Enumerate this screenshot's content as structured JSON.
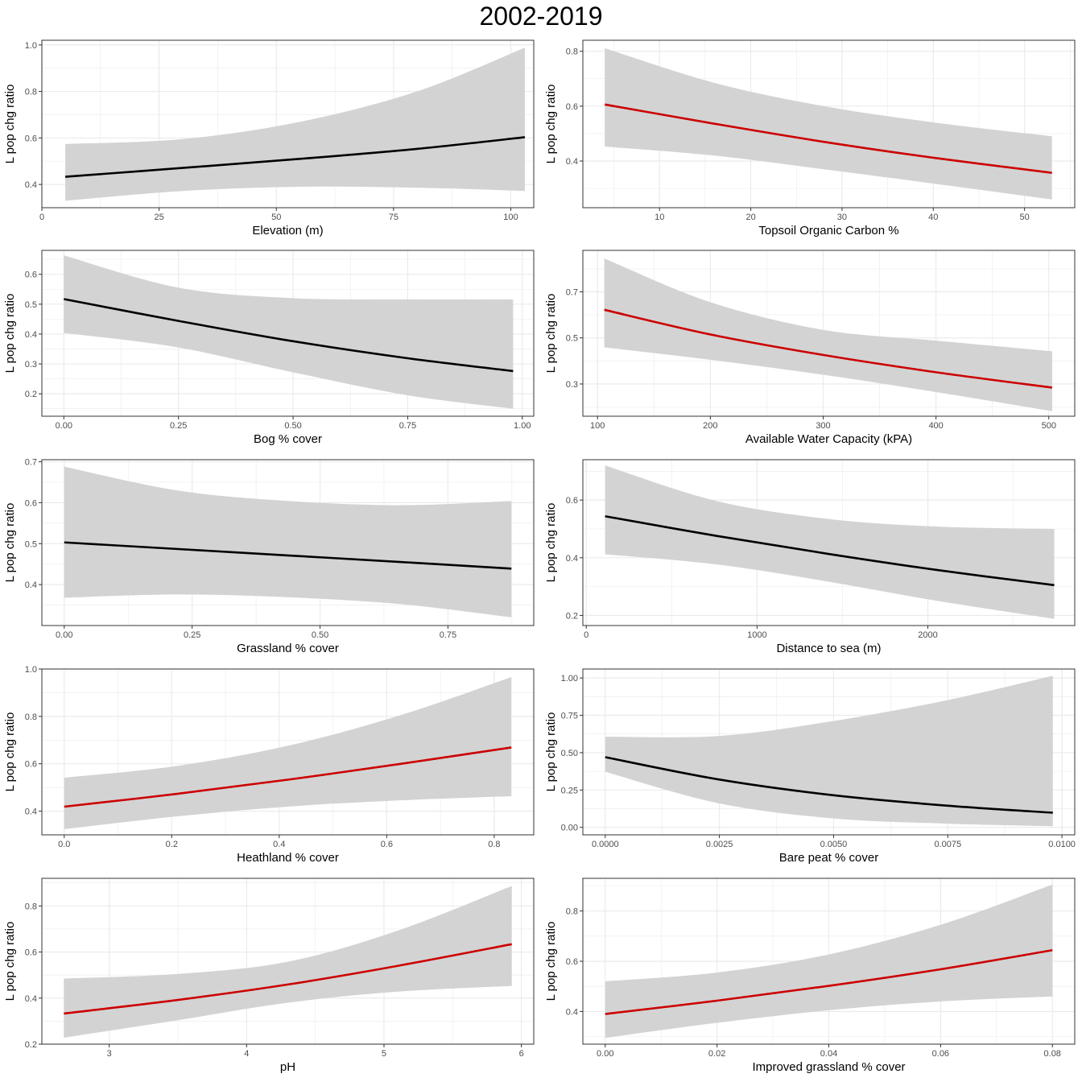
{
  "title": "2002-2019",
  "colors": {
    "significant": "#cc0000",
    "nonsignificant": "#000000",
    "ribbon": "#d3d3d3",
    "grid": "#ebebeb",
    "panel_border": "#333333"
  },
  "chart_data": [
    {
      "type": "line",
      "title": "",
      "xlabel": "Elevation (m)",
      "ylabel": "L pop chg ratio",
      "xlim": [
        0,
        104.9
      ],
      "ylim": [
        0.3,
        1.02
      ],
      "xticks": [
        0,
        25,
        50,
        75,
        100
      ],
      "xtick_labels": [
        "0",
        "25",
        "50",
        "75",
        "100"
      ],
      "yticks": [
        0.4,
        0.6,
        0.8,
        1.0
      ],
      "ytick_labels": [
        "0.4",
        "0.6",
        "0.8",
        "1.0"
      ],
      "line_color": "black",
      "x": [
        5,
        30,
        55,
        80,
        103
      ],
      "y": [
        0.433,
        0.471,
        0.51,
        0.553,
        0.603
      ],
      "lower": [
        0.33,
        0.372,
        0.39,
        0.386,
        0.372
      ],
      "upper": [
        0.574,
        0.595,
        0.669,
        0.8,
        0.988
      ]
    },
    {
      "type": "line",
      "title": "",
      "xlabel": "Topsoil Organic Carbon %",
      "ylabel": "L pop chg ratio",
      "xlim": [
        1.6,
        55.5
      ],
      "ylim": [
        0.23,
        0.84
      ],
      "xticks": [
        10,
        20,
        30,
        40,
        50
      ],
      "xtick_labels": [
        "10",
        "20",
        "30",
        "40",
        "50"
      ],
      "yticks": [
        0.4,
        0.6,
        0.8
      ],
      "ytick_labels": [
        "0.4",
        "0.6",
        "0.8"
      ],
      "line_color": "red",
      "x": [
        4,
        16,
        28,
        40,
        53
      ],
      "y": [
        0.606,
        0.536,
        0.47,
        0.412,
        0.357
      ],
      "lower": [
        0.453,
        0.42,
        0.37,
        0.318,
        0.26
      ],
      "upper": [
        0.811,
        0.685,
        0.6,
        0.541,
        0.49
      ]
    },
    {
      "type": "line",
      "title": "",
      "xlabel": "Bog % cover",
      "ylabel": "L pop chg ratio",
      "xlim": [
        -0.048,
        1.025
      ],
      "ylim": [
        0.125,
        0.68
      ],
      "xticks": [
        0,
        0.25,
        0.5,
        0.75,
        1.0
      ],
      "xtick_labels": [
        "0.00",
        "0.25",
        "0.50",
        "0.75",
        "1.00"
      ],
      "yticks": [
        0.2,
        0.3,
        0.4,
        0.5,
        0.6
      ],
      "ytick_labels": [
        "0.2",
        "0.3",
        "0.4",
        "0.5",
        "0.6"
      ],
      "line_color": "black",
      "x": [
        0,
        0.25,
        0.5,
        0.75,
        0.98
      ],
      "y": [
        0.517,
        0.444,
        0.376,
        0.319,
        0.276
      ],
      "lower": [
        0.404,
        0.355,
        0.272,
        0.195,
        0.15
      ],
      "upper": [
        0.663,
        0.555,
        0.52,
        0.516,
        0.516
      ]
    },
    {
      "type": "line",
      "title": "",
      "xlabel": "Available Water Capacity (kPA)",
      "ylabel": "L pop chg ratio",
      "xlim": [
        87,
        523
      ],
      "ylim": [
        0.16,
        0.88
      ],
      "xticks": [
        100,
        200,
        300,
        400,
        500
      ],
      "xtick_labels": [
        "100",
        "200",
        "300",
        "400",
        "500"
      ],
      "yticks": [
        0.3,
        0.5,
        0.7
      ],
      "ytick_labels": [
        "0.3",
        "0.5",
        "0.7"
      ],
      "line_color": "red",
      "x": [
        106,
        200,
        300,
        400,
        503
      ],
      "y": [
        0.622,
        0.515,
        0.426,
        0.351,
        0.284
      ],
      "lower": [
        0.459,
        0.405,
        0.34,
        0.265,
        0.182
      ],
      "upper": [
        0.845,
        0.655,
        0.535,
        0.488,
        0.442
      ]
    },
    {
      "type": "line",
      "title": "",
      "xlabel": "Grassland % cover",
      "ylabel": "L pop chg ratio",
      "xlim": [
        -0.0437,
        0.9177
      ],
      "ylim": [
        0.3,
        0.705
      ],
      "xticks": [
        0,
        0.25,
        0.5,
        0.75
      ],
      "xtick_labels": [
        "0.00",
        "0.25",
        "0.50",
        "0.75"
      ],
      "yticks": [
        0.4,
        0.5,
        0.6,
        0.7
      ],
      "ytick_labels": [
        "0.4",
        "0.5",
        "0.6",
        "0.7"
      ],
      "line_color": "black",
      "x": [
        0,
        0.22,
        0.44,
        0.66,
        0.874
      ],
      "y": [
        0.503,
        0.487,
        0.471,
        0.455,
        0.439
      ],
      "lower": [
        0.368,
        0.376,
        0.369,
        0.352,
        0.32
      ],
      "upper": [
        0.688,
        0.63,
        0.604,
        0.594,
        0.604
      ]
    },
    {
      "type": "line",
      "title": "",
      "xlabel": "Distance to sea (m)",
      "ylabel": "L pop chg ratio",
      "xlim": [
        -20,
        2860
      ],
      "ylim": [
        0.165,
        0.74
      ],
      "xticks": [
        0,
        1000,
        2000
      ],
      "xtick_labels": [
        "0",
        "1000",
        "2000"
      ],
      "yticks": [
        0.2,
        0.4,
        0.6
      ],
      "ytick_labels": [
        "0.2",
        "0.4",
        "0.6"
      ],
      "line_color": "black",
      "x": [
        110,
        760,
        1410,
        2060,
        2740
      ],
      "y": [
        0.544,
        0.476,
        0.414,
        0.357,
        0.305
      ],
      "lower": [
        0.412,
        0.377,
        0.318,
        0.25,
        0.188
      ],
      "upper": [
        0.72,
        0.597,
        0.535,
        0.508,
        0.5
      ]
    },
    {
      "type": "line",
      "title": "",
      "xlabel": "Heathland % cover",
      "ylabel": "L pop chg ratio",
      "xlim": [
        -0.0416,
        0.8736
      ],
      "ylim": [
        0.3,
        1.0
      ],
      "xticks": [
        0,
        0.2,
        0.4,
        0.6,
        0.8
      ],
      "xtick_labels": [
        "0.0",
        "0.2",
        "0.4",
        "0.6",
        "0.8"
      ],
      "yticks": [
        0.4,
        0.6,
        0.8,
        1.0
      ],
      "ytick_labels": [
        "0.4",
        "0.6",
        "0.8",
        "1.0"
      ],
      "line_color": "red",
      "x": [
        0,
        0.21,
        0.42,
        0.63,
        0.832
      ],
      "y": [
        0.419,
        0.473,
        0.534,
        0.601,
        0.669
      ],
      "lower": [
        0.324,
        0.378,
        0.42,
        0.446,
        0.463
      ],
      "upper": [
        0.541,
        0.591,
        0.678,
        0.808,
        0.966
      ]
    },
    {
      "type": "line",
      "title": "",
      "xlabel": "Bare peat % cover",
      "ylabel": "L pop chg ratio",
      "xlim": [
        -0.0004895,
        0.01028
      ],
      "ylim": [
        -0.05,
        1.06
      ],
      "xticks": [
        0,
        0.0025,
        0.005,
        0.0075,
        0.01
      ],
      "xtick_labels": [
        "0.0000",
        "0.0025",
        "0.0050",
        "0.0075",
        "0.0100"
      ],
      "yticks": [
        0,
        0.25,
        0.5,
        0.75,
        1.0
      ],
      "ytick_labels": [
        "0.00",
        "0.25",
        "0.50",
        "0.75",
        "1.00"
      ],
      "line_color": "black",
      "x": [
        0,
        0.0025,
        0.005,
        0.0075,
        0.0098
      ],
      "y": [
        0.47,
        0.32,
        0.215,
        0.145,
        0.098
      ],
      "lower": [
        0.372,
        0.16,
        0.06,
        0.025,
        0.008
      ],
      "upper": [
        0.607,
        0.612,
        0.712,
        0.852,
        1.015
      ]
    },
    {
      "type": "line",
      "title": "",
      "xlabel": "pH",
      "ylabel": "L pop chg ratio",
      "xlim": [
        2.51,
        6.09
      ],
      "ylim": [
        0.2,
        0.92
      ],
      "xticks": [
        3,
        4,
        5,
        6
      ],
      "xtick_labels": [
        "3",
        "4",
        "5",
        "6"
      ],
      "yticks": [
        0.2,
        0.4,
        0.6,
        0.8
      ],
      "ytick_labels": [
        "0.2",
        "0.4",
        "0.6",
        "0.8"
      ],
      "line_color": "red",
      "x": [
        2.67,
        3.5,
        4.3,
        5.1,
        5.93
      ],
      "y": [
        0.333,
        0.392,
        0.459,
        0.54,
        0.634
      ],
      "lower": [
        0.228,
        0.304,
        0.38,
        0.428,
        0.453
      ],
      "upper": [
        0.485,
        0.505,
        0.558,
        0.693,
        0.887
      ]
    },
    {
      "type": "line",
      "title": "",
      "xlabel": "Improved grassland % cover",
      "ylabel": "L pop chg ratio",
      "xlim": [
        -0.004,
        0.084
      ],
      "ylim": [
        0.27,
        0.93
      ],
      "xticks": [
        0,
        0.02,
        0.04,
        0.06,
        0.08
      ],
      "xtick_labels": [
        "0.00",
        "0.02",
        "0.04",
        "0.06",
        "0.08"
      ],
      "yticks": [
        0.4,
        0.6,
        0.8
      ],
      "ytick_labels": [
        "0.4",
        "0.6",
        "0.8"
      ],
      "line_color": "red",
      "x": [
        0,
        0.02,
        0.04,
        0.06,
        0.08
      ],
      "y": [
        0.39,
        0.443,
        0.502,
        0.568,
        0.644
      ],
      "lower": [
        0.295,
        0.355,
        0.405,
        0.44,
        0.46
      ],
      "upper": [
        0.52,
        0.555,
        0.627,
        0.745,
        0.905
      ]
    }
  ]
}
